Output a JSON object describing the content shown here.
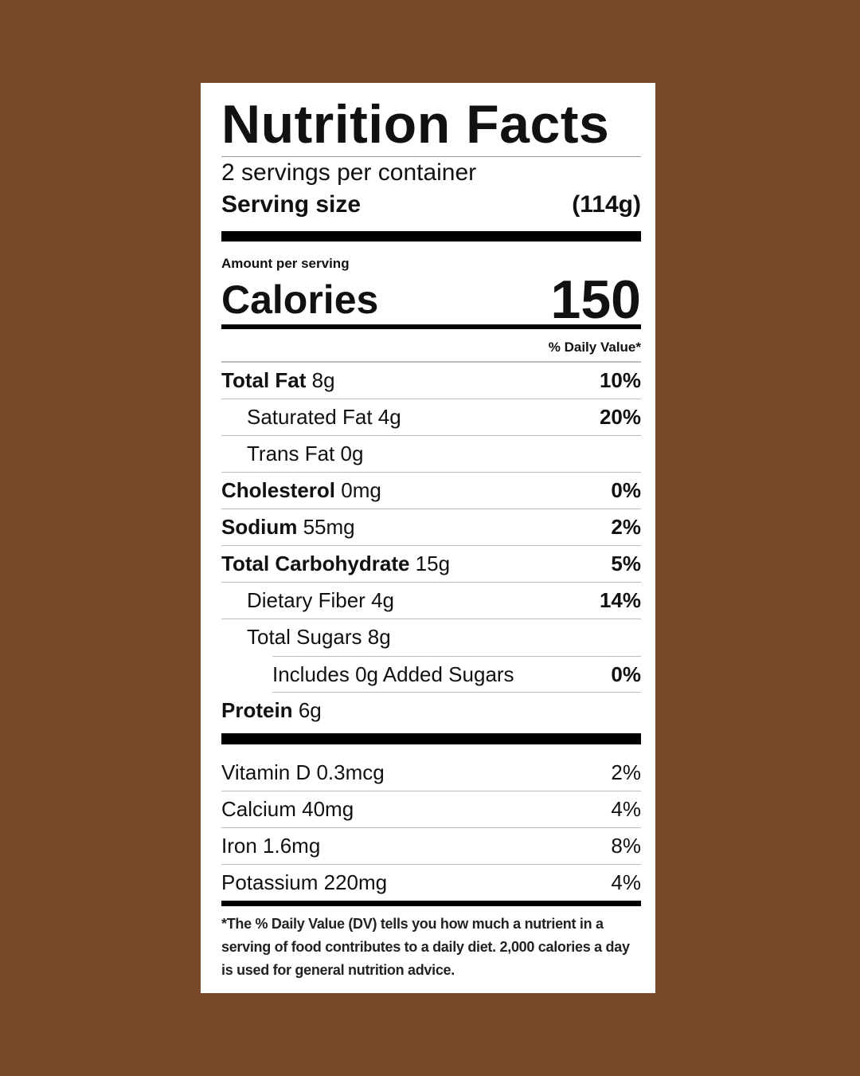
{
  "colors": {
    "background": "#774829",
    "label": "#ffffff",
    "text": "#111111"
  },
  "title": "Nutrition Facts",
  "servings_per_container": "2 servings per container",
  "serving_size": {
    "label": "Serving size",
    "value": "(114g)"
  },
  "amount_per_serving": "Amount per serving",
  "calories": {
    "label": "Calories",
    "value": "150"
  },
  "daily_value_header": "% Daily Value*",
  "nutrients": [
    {
      "name": "Total Fat",
      "amount": "8g",
      "dv": "10%"
    },
    {
      "name": "Saturated Fat",
      "amount": "4g",
      "dv": "20%"
    },
    {
      "name": "Trans Fat",
      "amount": "0g",
      "dv": ""
    },
    {
      "name": "Cholesterol",
      "amount": "0mg",
      "dv": "0%"
    },
    {
      "name": "Sodium",
      "amount": "55mg",
      "dv": "2%"
    },
    {
      "name": "Total Carbohydrate",
      "amount": "15g",
      "dv": "5%"
    },
    {
      "name": "Dietary Fiber",
      "amount": "4g",
      "dv": "14%"
    },
    {
      "name": "Total Sugars",
      "amount": "8g",
      "dv": ""
    },
    {
      "name": "Includes 0g Added Sugars",
      "amount": "",
      "dv": "0%"
    },
    {
      "name": "Protein",
      "amount": "6g",
      "dv": ""
    }
  ],
  "vitamins": [
    {
      "name": "Vitamin D 0.3mcg",
      "dv": "2%"
    },
    {
      "name": "Calcium 40mg",
      "dv": "4%"
    },
    {
      "name": "Iron 1.6mg",
      "dv": "8%"
    },
    {
      "name": "Potassium 220mg",
      "dv": "4%"
    }
  ],
  "footnote": "*The % Daily Value (DV) tells you how much a nutrient in a serving of food contributes to a daily diet. 2,000 calories a day is used for general nutrition advice."
}
